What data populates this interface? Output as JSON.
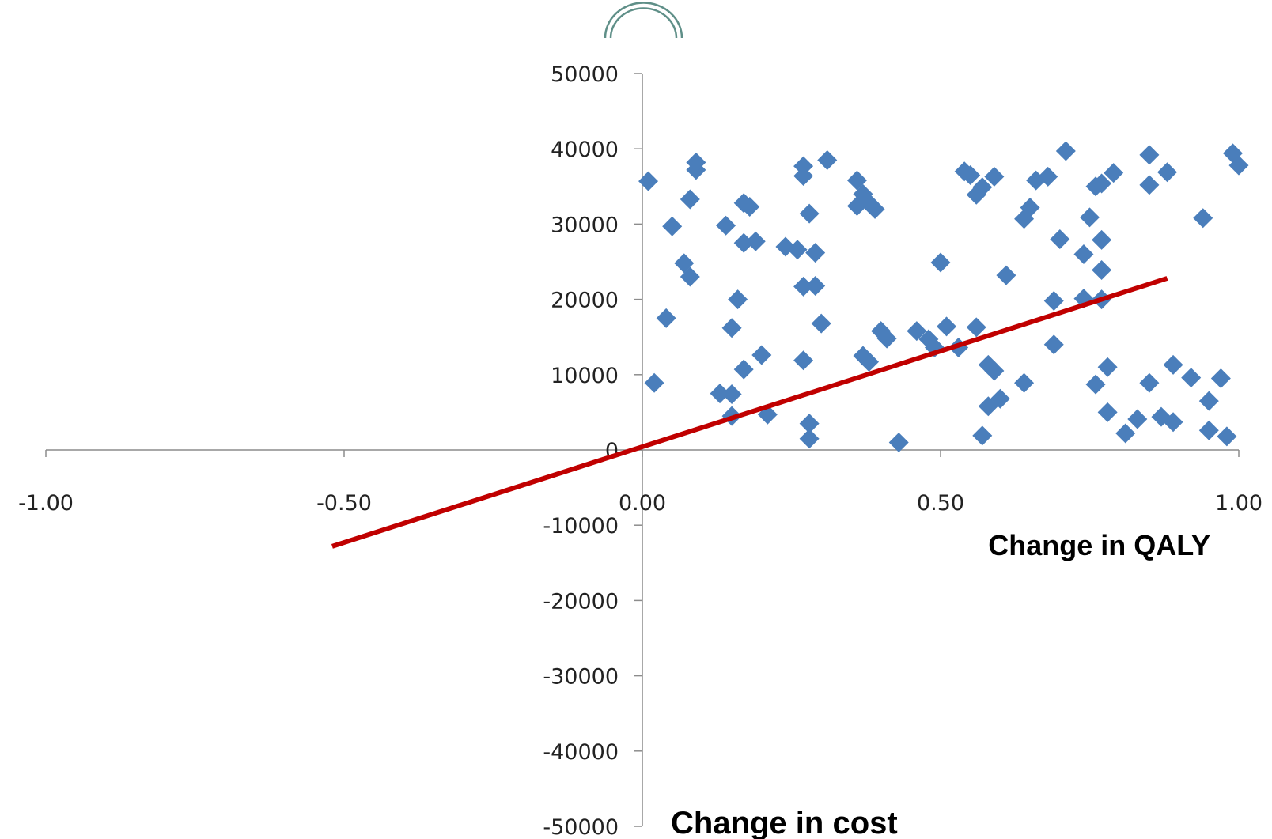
{
  "chart_data": {
    "type": "scatter",
    "title": "",
    "xlabel": "Change in QALY",
    "ylabel": "Change in cost",
    "xlim": [
      -1.0,
      1.0
    ],
    "ylim": [
      -50000,
      50000
    ],
    "x_ticks": [
      "-1.00",
      "-0.50",
      "0.00",
      "0.50",
      "1.00"
    ],
    "y_ticks": [
      "50000",
      "40000",
      "30000",
      "20000",
      "10000",
      "0",
      "-10000",
      "-20000",
      "-30000",
      "-40000",
      "-50000"
    ],
    "grid": false,
    "colors": {
      "points": "#4a7ebb",
      "threshold_line": "#c00000",
      "axes": "#8c8c8c",
      "decoration": "#5f8f88"
    },
    "series": [
      {
        "marker": "diamond",
        "points": [
          [
            0.01,
            35700
          ],
          [
            0.02,
            8900
          ],
          [
            0.04,
            17500
          ],
          [
            0.05,
            29700
          ],
          [
            0.07,
            24800
          ],
          [
            0.08,
            23000
          ],
          [
            0.08,
            33300
          ],
          [
            0.09,
            37200
          ],
          [
            0.09,
            38200
          ],
          [
            0.13,
            7500
          ],
          [
            0.14,
            29800
          ],
          [
            0.15,
            16200
          ],
          [
            0.15,
            7400
          ],
          [
            0.15,
            4500
          ],
          [
            0.16,
            20000
          ],
          [
            0.17,
            10700
          ],
          [
            0.17,
            27500
          ],
          [
            0.17,
            32800
          ],
          [
            0.18,
            32300
          ],
          [
            0.19,
            27700
          ],
          [
            0.2,
            12600
          ],
          [
            0.21,
            4700
          ],
          [
            0.24,
            27000
          ],
          [
            0.26,
            26600
          ],
          [
            0.27,
            36400
          ],
          [
            0.27,
            37700
          ],
          [
            0.27,
            21700
          ],
          [
            0.27,
            11900
          ],
          [
            0.28,
            3500
          ],
          [
            0.28,
            31400
          ],
          [
            0.28,
            1500
          ],
          [
            0.29,
            26200
          ],
          [
            0.29,
            21800
          ],
          [
            0.3,
            16800
          ],
          [
            0.31,
            38500
          ],
          [
            0.36,
            35800
          ],
          [
            0.36,
            32400
          ],
          [
            0.37,
            12500
          ],
          [
            0.37,
            34000
          ],
          [
            0.38,
            11700
          ],
          [
            0.38,
            32800
          ],
          [
            0.39,
            32000
          ],
          [
            0.4,
            15800
          ],
          [
            0.41,
            14800
          ],
          [
            0.43,
            1000
          ],
          [
            0.46,
            15800
          ],
          [
            0.48,
            14700
          ],
          [
            0.49,
            13600
          ],
          [
            0.5,
            24900
          ],
          [
            0.51,
            16400
          ],
          [
            0.53,
            13600
          ],
          [
            0.54,
            37000
          ],
          [
            0.55,
            36500
          ],
          [
            0.56,
            16300
          ],
          [
            0.56,
            33900
          ],
          [
            0.57,
            34900
          ],
          [
            0.57,
            1900
          ],
          [
            0.58,
            5800
          ],
          [
            0.58,
            11300
          ],
          [
            0.59,
            10500
          ],
          [
            0.59,
            36300
          ],
          [
            0.6,
            6800
          ],
          [
            0.61,
            23200
          ],
          [
            0.64,
            30700
          ],
          [
            0.64,
            8900
          ],
          [
            0.65,
            32200
          ],
          [
            0.66,
            35800
          ],
          [
            0.68,
            36300
          ],
          [
            0.69,
            14000
          ],
          [
            0.69,
            19800
          ],
          [
            0.7,
            28000
          ],
          [
            0.71,
            39700
          ],
          [
            0.74,
            26000
          ],
          [
            0.74,
            20100
          ],
          [
            0.75,
            30900
          ],
          [
            0.76,
            8700
          ],
          [
            0.76,
            35000
          ],
          [
            0.77,
            27900
          ],
          [
            0.77,
            23900
          ],
          [
            0.77,
            35400
          ],
          [
            0.77,
            20000
          ],
          [
            0.78,
            11000
          ],
          [
            0.78,
            5000
          ],
          [
            0.79,
            36800
          ],
          [
            0.81,
            2200
          ],
          [
            0.83,
            4100
          ],
          [
            0.85,
            39200
          ],
          [
            0.85,
            8900
          ],
          [
            0.85,
            35200
          ],
          [
            0.87,
            4400
          ],
          [
            0.88,
            36900
          ],
          [
            0.89,
            11300
          ],
          [
            0.89,
            3700
          ],
          [
            0.92,
            9600
          ],
          [
            0.94,
            30800
          ],
          [
            0.95,
            2600
          ],
          [
            0.95,
            6500
          ],
          [
            0.97,
            9500
          ],
          [
            0.98,
            1800
          ],
          [
            0.99,
            39400
          ],
          [
            1.0,
            37800
          ]
        ]
      }
    ],
    "threshold_line": {
      "x": [
        -0.52,
        0.88
      ],
      "y": [
        -12800,
        22800
      ]
    }
  }
}
